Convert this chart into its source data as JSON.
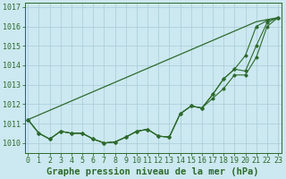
{
  "title": "Graphe pression niveau de la mer (hPa)",
  "x": [
    0,
    1,
    2,
    3,
    4,
    5,
    6,
    7,
    8,
    9,
    10,
    11,
    12,
    13,
    14,
    15,
    16,
    17,
    18,
    19,
    20,
    21,
    22,
    23
  ],
  "line_straight": [
    1011.2,
    1011.44,
    1011.68,
    1011.92,
    1012.16,
    1012.4,
    1012.64,
    1012.88,
    1013.12,
    1013.36,
    1013.6,
    1013.84,
    1014.08,
    1014.32,
    1014.56,
    1014.8,
    1015.04,
    1015.28,
    1015.52,
    1015.76,
    1016.0,
    1016.24,
    1016.35,
    1016.45
  ],
  "line_high": [
    1011.2,
    1010.5,
    1010.2,
    1010.6,
    1010.5,
    1010.5,
    1010.2,
    1010.0,
    1010.05,
    1010.3,
    1010.6,
    1010.7,
    1010.35,
    1010.3,
    1011.5,
    1011.9,
    1011.8,
    1012.5,
    1013.3,
    1013.8,
    1014.5,
    1016.0,
    1016.3,
    1016.45
  ],
  "line_mid": [
    1011.2,
    1010.5,
    1010.2,
    1010.6,
    1010.5,
    1010.5,
    1010.2,
    1010.0,
    1010.05,
    1010.3,
    1010.6,
    1010.7,
    1010.35,
    1010.3,
    1011.5,
    1011.9,
    1011.8,
    1012.5,
    1013.3,
    1013.8,
    1013.7,
    1015.0,
    1016.2,
    1016.45
  ],
  "line_low": [
    1011.2,
    1010.5,
    1010.2,
    1010.6,
    1010.5,
    1010.5,
    1010.2,
    1010.0,
    1010.05,
    1010.3,
    1010.6,
    1010.7,
    1010.35,
    1010.3,
    1011.5,
    1011.9,
    1011.8,
    1012.3,
    1012.8,
    1013.5,
    1013.5,
    1014.4,
    1016.0,
    1016.45
  ],
  "line_color": "#2d6a2d",
  "bg_color": "#cce8f0",
  "grid_color": "#a8ccd8",
  "ylim_min": 1009.5,
  "ylim_max": 1017.2,
  "yticks": [
    1010,
    1011,
    1012,
    1013,
    1014,
    1015,
    1016,
    1017
  ],
  "title_fontsize": 7.5,
  "tick_fontsize": 6.0
}
